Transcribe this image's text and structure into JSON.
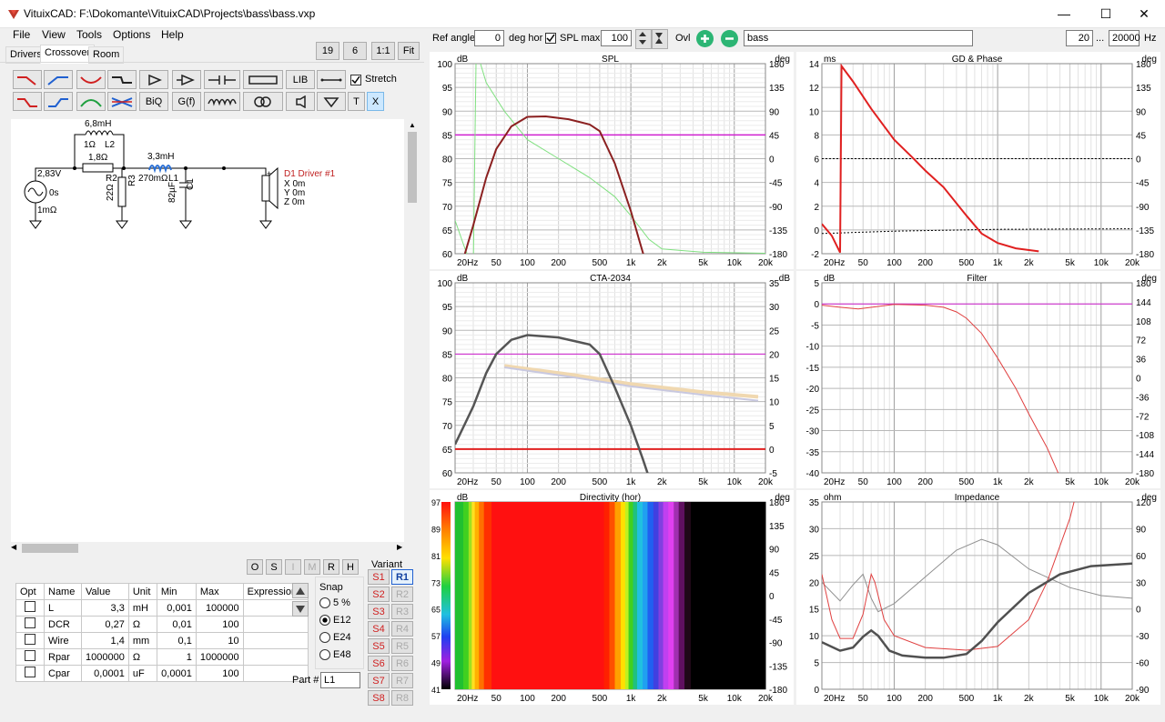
{
  "window": {
    "title": "VituixCAD: F:\\Dokomante\\VituixCAD\\Projects\\bass\\bass.vxp",
    "minimize": "—",
    "maximize": "☐",
    "close": "✕"
  },
  "menu": [
    "File",
    "View",
    "Tools",
    "Options",
    "Help"
  ],
  "tabs": [
    "Drivers",
    "Crossover",
    "Room"
  ],
  "zoom_buttons": [
    "19",
    "6",
    "1:1",
    "Fit"
  ],
  "toolbar": {
    "lib": "LIB",
    "biq": "BiQ",
    "gf": "G(f)",
    "stretch": "Stretch",
    "t": "T",
    "x": "X"
  },
  "schematic": {
    "L2_value": "6,8mH",
    "L2_r": "1Ω",
    "L2_name": "L2",
    "R_series": "1,8Ω",
    "L1_value": "3,3mH",
    "L1_r": "270mΩ",
    "L1_name": "L1",
    "R2_name": "R2",
    "R2_value": "22Ω",
    "R3_name": "R3",
    "C1_name": "C1",
    "C1_value": "82µF",
    "source_voltage": "2,83V",
    "source_delay": "0s",
    "source_r": "1mΩ",
    "driver_name": "D1 Driver #1",
    "driver_x": "X 0m",
    "driver_y": "Y 0m",
    "driver_z": "Z 0m",
    "plus": "+"
  },
  "mini_buttons": [
    "O",
    "S",
    "I",
    "M",
    "R",
    "H"
  ],
  "param_table": {
    "headers": [
      "Opt",
      "Name",
      "Value",
      "Unit",
      "Min",
      "Max",
      "Expression"
    ],
    "rows": [
      {
        "name": "L",
        "value": "3,3",
        "unit": "mH",
        "min": "0,001",
        "max": "100000",
        "expr": ""
      },
      {
        "name": "DCR",
        "value": "0,27",
        "unit": "Ω",
        "min": "0,01",
        "max": "100",
        "expr": ""
      },
      {
        "name": "Wire",
        "value": "1,4",
        "unit": "mm",
        "min": "0,1",
        "max": "10",
        "expr": ""
      },
      {
        "name": "Rpar",
        "value": "1000000",
        "unit": "Ω",
        "min": "1",
        "max": "1000000",
        "expr": ""
      },
      {
        "name": "Cpar",
        "value": "0,0001",
        "unit": "uF",
        "min": "0,0001",
        "max": "100",
        "expr": ""
      }
    ]
  },
  "snap": {
    "label": "Snap",
    "options": [
      "5 %",
      "E12",
      "E24",
      "E48"
    ],
    "selected": "E12"
  },
  "part_label": "Part #",
  "part_value": "L1",
  "variant": {
    "label": "Variant",
    "s": [
      "S1",
      "S2",
      "S3",
      "S4",
      "S5",
      "S6",
      "S7",
      "S8"
    ],
    "r": [
      "R1",
      "R2",
      "R3",
      "R4",
      "R5",
      "R6",
      "R7",
      "R8"
    ],
    "active_r": "R1"
  },
  "graph_toolbar": {
    "ref_angle_label": "Ref angle",
    "ref_angle": "0",
    "deg_hor": "deg hor",
    "spl_max_label": "SPL max",
    "spl_max": "100",
    "ovl": "Ovl",
    "name": "bass",
    "f_min": "20",
    "dots": "...",
    "f_max": "20000",
    "hz": "Hz"
  },
  "freq_ticks": [
    "20Hz",
    "50",
    "100",
    "200",
    "500",
    "1k",
    "2k",
    "5k",
    "10k",
    "20k"
  ],
  "graphs": {
    "spl": {
      "title": "SPL",
      "left_unit": "dB",
      "right_unit": "deg",
      "left_ticks": [
        "100",
        "95",
        "90",
        "85",
        "80",
        "75",
        "70",
        "65",
        "60"
      ],
      "right_ticks": [
        "180",
        "135",
        "90",
        "45",
        "0",
        "-45",
        "-90",
        "-135",
        "-180"
      ]
    },
    "gd": {
      "title": "GD & Phase",
      "left_unit": "ms",
      "right_unit": "deg",
      "left_ticks": [
        "14",
        "12",
        "10",
        "8",
        "6",
        "4",
        "2",
        "0",
        "-2"
      ],
      "right_ticks": [
        "180",
        "135",
        "90",
        "45",
        "0",
        "-45",
        "-90",
        "-135",
        "-180"
      ]
    },
    "cta": {
      "title": "CTA-2034",
      "left_unit": "dB",
      "right_unit": "dB",
      "left_ticks": [
        "100",
        "95",
        "90",
        "85",
        "80",
        "75",
        "70",
        "65",
        "60"
      ],
      "right_ticks": [
        "35",
        "30",
        "25",
        "20",
        "15",
        "10",
        "5",
        "0",
        "-5"
      ]
    },
    "filter": {
      "title": "Filter",
      "left_unit": "dB",
      "right_unit": "deg",
      "left_ticks": [
        "5",
        "0",
        "-5",
        "-10",
        "-15",
        "-20",
        "-25",
        "-30",
        "-35",
        "-40"
      ],
      "right_ticks": [
        "180",
        "144",
        "108",
        "72",
        "36",
        "0",
        "-36",
        "-72",
        "-108",
        "-144",
        "-180"
      ]
    },
    "directivity": {
      "title": "Directivity (hor)",
      "left_unit": "dB",
      "right_unit": "deg",
      "colorbar_ticks": [
        "97",
        "89",
        "81",
        "73",
        "65",
        "57",
        "49",
        "41"
      ],
      "right_ticks": [
        "180",
        "135",
        "90",
        "45",
        "0",
        "-45",
        "-90",
        "-135",
        "-180"
      ]
    },
    "impedance": {
      "title": "Impedance",
      "left_unit": "ohm",
      "right_unit": "deg",
      "left_ticks": [
        "35",
        "30",
        "25",
        "20",
        "15",
        "10",
        "5",
        "0"
      ],
      "right_ticks": [
        "120",
        "90",
        "60",
        "30",
        "0",
        "-30",
        "-60",
        "-90"
      ]
    }
  }
}
